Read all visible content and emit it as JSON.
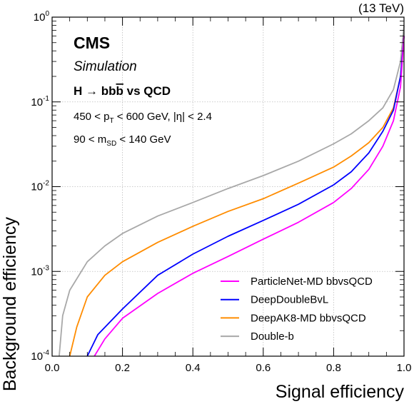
{
  "chart_data": {
    "type": "line",
    "energy_label": "(13 TeV)",
    "experiment": "CMS",
    "subtitle": "Simulation",
    "process_label": "H → bb̄ vs QCD",
    "selection_lines": [
      "450 < pT < 600 GeV, |η| < 2.4",
      "90 < mSD < 140 GeV"
    ],
    "xlabel": "Signal efficiency",
    "ylabel": "Background efficiency",
    "xlim": [
      0.0,
      1.0
    ],
    "ylim": [
      0.0001,
      1
    ],
    "yscale": "log",
    "grid": true,
    "legend_position": "bottom-right",
    "x_ticks": [
      "0.0",
      "0.2",
      "0.4",
      "0.6",
      "0.8",
      "1.0"
    ],
    "series": [
      {
        "name": "ParticleNet-MD bbvsQCD",
        "color": "#ff00ff",
        "points": [
          [
            0.12,
            0.0001
          ],
          [
            0.15,
            0.00016
          ],
          [
            0.2,
            0.00028
          ],
          [
            0.3,
            0.00055
          ],
          [
            0.4,
            0.00095
          ],
          [
            0.5,
            0.0015
          ],
          [
            0.6,
            0.0024
          ],
          [
            0.7,
            0.0038
          ],
          [
            0.8,
            0.0065
          ],
          [
            0.85,
            0.0095
          ],
          [
            0.9,
            0.016
          ],
          [
            0.94,
            0.03
          ],
          [
            0.97,
            0.06
          ],
          [
            0.99,
            0.15
          ],
          [
            1.0,
            0.6
          ]
        ]
      },
      {
        "name": "DeepDoubleBvL",
        "color": "#0000ff",
        "points": [
          [
            0.1,
            0.0001
          ],
          [
            0.13,
            0.00018
          ],
          [
            0.2,
            0.00036
          ],
          [
            0.3,
            0.0009
          ],
          [
            0.4,
            0.0016
          ],
          [
            0.5,
            0.0026
          ],
          [
            0.6,
            0.004
          ],
          [
            0.7,
            0.0062
          ],
          [
            0.8,
            0.0105
          ],
          [
            0.85,
            0.015
          ],
          [
            0.9,
            0.025
          ],
          [
            0.94,
            0.045
          ],
          [
            0.97,
            0.08
          ],
          [
            0.99,
            0.2
          ],
          [
            1.0,
            0.6
          ]
        ]
      },
      {
        "name": "DeepAK8-MD bbvsQCD",
        "color": "#ff8c00",
        "points": [
          [
            0.05,
            0.0001
          ],
          [
            0.07,
            0.00022
          ],
          [
            0.1,
            0.0005
          ],
          [
            0.15,
            0.0009
          ],
          [
            0.2,
            0.0013
          ],
          [
            0.3,
            0.0022
          ],
          [
            0.4,
            0.0034
          ],
          [
            0.5,
            0.0051
          ],
          [
            0.6,
            0.0072
          ],
          [
            0.7,
            0.011
          ],
          [
            0.8,
            0.017
          ],
          [
            0.85,
            0.023
          ],
          [
            0.9,
            0.033
          ],
          [
            0.94,
            0.05
          ],
          [
            0.97,
            0.085
          ],
          [
            0.99,
            0.2
          ],
          [
            1.0,
            0.6
          ]
        ]
      },
      {
        "name": "Double-b",
        "color": "#a8a8a8",
        "points": [
          [
            0.02,
            0.0001
          ],
          [
            0.03,
            0.0003
          ],
          [
            0.05,
            0.0006
          ],
          [
            0.1,
            0.0013
          ],
          [
            0.15,
            0.002
          ],
          [
            0.2,
            0.0028
          ],
          [
            0.3,
            0.0045
          ],
          [
            0.4,
            0.0065
          ],
          [
            0.5,
            0.0095
          ],
          [
            0.6,
            0.0135
          ],
          [
            0.7,
            0.02
          ],
          [
            0.8,
            0.032
          ],
          [
            0.85,
            0.042
          ],
          [
            0.9,
            0.06
          ],
          [
            0.94,
            0.085
          ],
          [
            0.97,
            0.14
          ],
          [
            0.99,
            0.3
          ],
          [
            1.0,
            0.8
          ]
        ]
      }
    ]
  }
}
